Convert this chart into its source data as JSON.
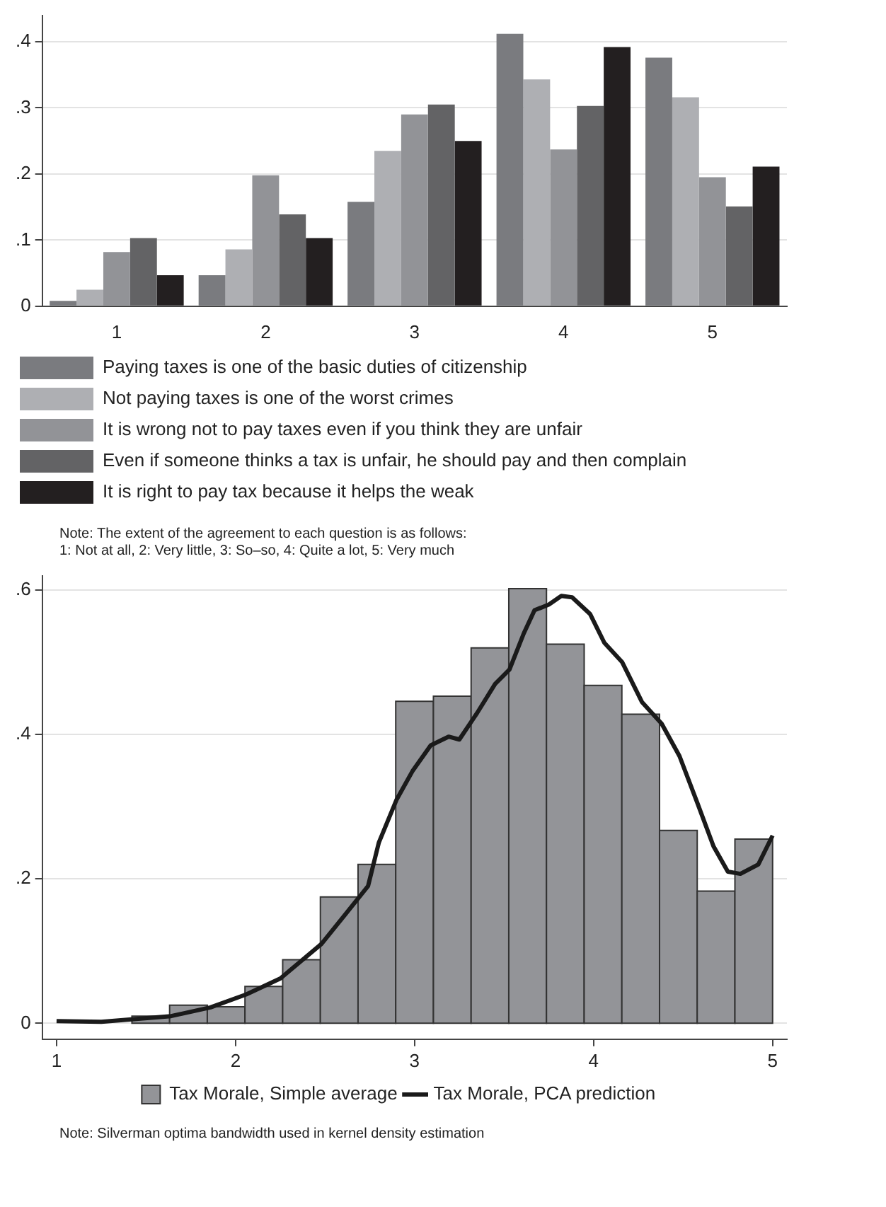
{
  "chart_data": [
    {
      "type": "bar",
      "categories": [
        "1",
        "2",
        "3",
        "4",
        "5"
      ],
      "series": [
        {
          "name": "Paying taxes is one of the basic duties of citizenship",
          "color": "#7a7b7f",
          "values": [
            0.008,
            0.047,
            0.158,
            0.412,
            0.376
          ]
        },
        {
          "name": "Not paying taxes is one of the worst crimes",
          "color": "#aeafb3",
          "values": [
            0.025,
            0.086,
            0.235,
            0.343,
            0.316
          ]
        },
        {
          "name": "It is wrong not to pay taxes even if you think they are unfair",
          "color": "#929397",
          "values": [
            0.082,
            0.198,
            0.29,
            0.237,
            0.195
          ]
        },
        {
          "name": "Even if someone thinks a tax is unfair, he should pay and then complain",
          "color": "#636365",
          "values": [
            0.103,
            0.139,
            0.305,
            0.303,
            0.151
          ]
        },
        {
          "name": "It is right to pay tax because it helps the weak",
          "color": "#231f20",
          "values": [
            0.047,
            0.103,
            0.25,
            0.392,
            0.211
          ]
        }
      ],
      "ylim": [
        0,
        0.44
      ],
      "yticks": [
        0,
        {
          "value": 0.1,
          "label": ".1"
        },
        {
          "value": 0.2,
          "label": ".2"
        },
        {
          "value": 0.3,
          "label": ".3"
        },
        {
          "value": 0.4,
          "label": ".4"
        }
      ],
      "grid": "y",
      "legend": "bottom",
      "annotations": [
        "Note: The extent of the agreement to each question is as follows:",
        "1: Not at all, 2: Very little, 3: So–so, 4: Quite a lot, 5: Very much"
      ]
    },
    {
      "type": "histogram",
      "bins": [
        1.4211,
        1.6316,
        1.8421,
        2.0526,
        2.2632,
        2.4737,
        2.6842,
        2.8947,
        3.1053,
        3.3158,
        3.5263,
        3.7368,
        3.9474,
        4.1579,
        4.3684,
        4.5789,
        4.7895,
        5
      ],
      "series": [
        {
          "name": "Tax Morale, Simple average",
          "color": "#939498",
          "values": [
            0.01,
            0.025,
            0.023,
            0.051,
            0.088,
            0.175,
            0.22,
            0.446,
            0.453,
            0.52,
            0.602,
            0.525,
            0.468,
            0.428,
            0.267,
            0.183,
            0.255
          ]
        },
        {
          "name": "Tax Morale, PCA prediction",
          "type": "line",
          "color": "#1a1a1a",
          "x": [
            1,
            1.25,
            1.64,
            1.86,
            2.06,
            2.25,
            2.48,
            2.61,
            2.74,
            2.8,
            2.9,
            2.99,
            3.09,
            3.19,
            3.25,
            3.35,
            3.45,
            3.53,
            3.61,
            3.67,
            3.75,
            3.82,
            3.88,
            3.98,
            4.06,
            4.16,
            4.27,
            4.38,
            4.48,
            4.58,
            4.67,
            4.75,
            4.82,
            4.92,
            5
          ],
          "values": [
            0.003,
            0.002,
            0.01,
            0.022,
            0.04,
            0.062,
            0.11,
            0.15,
            0.19,
            0.25,
            0.31,
            0.35,
            0.385,
            0.397,
            0.393,
            0.43,
            0.47,
            0.49,
            0.54,
            0.572,
            0.58,
            0.592,
            0.59,
            0.567,
            0.527,
            0.5,
            0.445,
            0.415,
            0.37,
            0.305,
            0.245,
            0.21,
            0.207,
            0.22,
            0.26
          ]
        }
      ],
      "xlim": [
        0.92,
        5.08
      ],
      "xticks": [
        1,
        2,
        3,
        4,
        5
      ],
      "ylim": [
        -0.022,
        0.62
      ],
      "yticks": [
        0,
        {
          "value": 0.2,
          "label": ".2"
        },
        {
          "value": 0.4,
          "label": ".4"
        },
        {
          "value": 0.6,
          "label": ".6"
        }
      ],
      "grid": "y",
      "legend": "bottom",
      "marker": "none",
      "annotations": [
        "Note: Silverman optima bandwidth used in kernel density estimation"
      ]
    }
  ]
}
